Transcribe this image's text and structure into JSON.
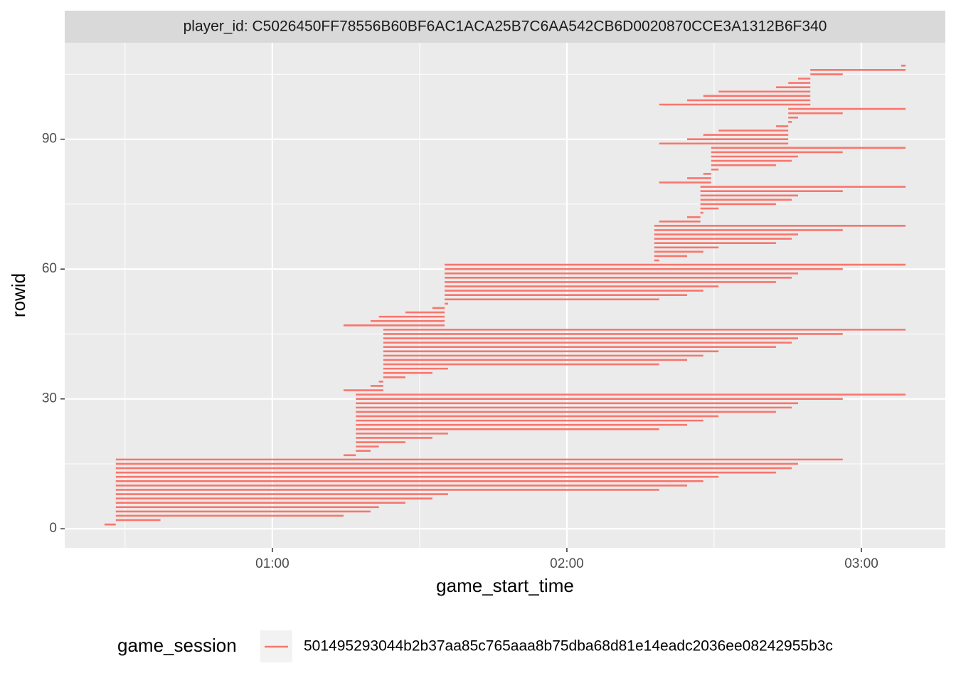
{
  "chart_data": {
    "type": "segment",
    "strip": "player_id: C5026450FF78556B60BF6AC1ACA25B7C6AA542CB6D0020870CCE3A1312B6F340",
    "x_label": "game_start_time",
    "y_label": "rowid",
    "legend_title": "game_session",
    "xlim": [
      17.7,
      197.1
    ],
    "xticks": [
      {
        "value": 60,
        "label": "01:00"
      },
      {
        "value": 120,
        "label": "02:00"
      },
      {
        "value": 180,
        "label": "03:00"
      }
    ],
    "x_minor_breaks": [
      30,
      90,
      150
    ],
    "ylim": [
      -4.4,
      112.3
    ],
    "yticks": [
      0,
      30,
      60,
      90
    ],
    "y_minor_breaks": [
      15,
      45,
      75,
      105
    ],
    "grid": true,
    "series": [
      {
        "name": "501495293044b2b37aa85c765aaa8b75dba68d81e14eadc2036ee08242955b3c",
        "color": "#f8766d",
        "rowid": [
          1,
          2,
          3,
          4,
          5,
          6,
          7,
          8,
          9,
          10,
          11,
          12,
          13,
          14,
          15,
          16,
          17,
          18,
          19,
          20,
          21,
          22,
          23,
          24,
          25,
          26,
          27,
          28,
          29,
          30,
          31,
          32,
          33,
          34,
          35,
          36,
          37,
          38,
          39,
          40,
          41,
          42,
          43,
          44,
          45,
          46,
          47,
          48,
          49,
          50,
          51,
          52,
          53,
          54,
          55,
          56,
          57,
          58,
          59,
          60,
          61,
          62,
          63,
          64,
          65,
          66,
          67,
          68,
          69,
          70,
          71,
          72,
          73,
          74,
          75,
          76,
          77,
          78,
          79,
          80,
          81,
          82,
          83,
          84,
          85,
          86,
          87,
          88,
          89,
          90,
          91,
          92,
          93,
          94,
          95,
          96,
          97,
          98,
          99,
          100,
          101,
          102,
          103,
          104,
          105,
          106,
          107
        ],
        "start": [
          25.8,
          28.1,
          28.1,
          28.1,
          28.1,
          28.1,
          28.1,
          28.1,
          28.1,
          28.1,
          28.1,
          28.1,
          28.1,
          28.1,
          28.1,
          28.1,
          74.5,
          77.0,
          77.0,
          77.0,
          77.0,
          77.0,
          77.0,
          77.0,
          77.0,
          77.0,
          77.0,
          77.0,
          77.0,
          77.0,
          77.0,
          74.5,
          80.0,
          81.7,
          82.6,
          82.6,
          82.6,
          82.6,
          82.6,
          82.6,
          82.6,
          82.6,
          82.6,
          82.6,
          82.6,
          82.6,
          74.5,
          80.0,
          81.7,
          87.1,
          92.6,
          95.1,
          95.1,
          95.1,
          95.1,
          95.1,
          95.1,
          95.1,
          95.1,
          95.1,
          95.1,
          137.8,
          137.8,
          137.8,
          137.8,
          137.8,
          137.8,
          137.8,
          137.8,
          137.8,
          138.8,
          144.5,
          147.2,
          147.2,
          147.2,
          147.2,
          147.2,
          147.2,
          147.2,
          138.8,
          144.5,
          147.8,
          149.4,
          149.4,
          149.4,
          149.4,
          149.4,
          149.4,
          138.8,
          144.5,
          147.8,
          150.9,
          162.6,
          165.1,
          165.1,
          165.1,
          165.1,
          138.8,
          144.5,
          147.8,
          150.9,
          162.6,
          165.1,
          167.1,
          169.6,
          169.6,
          188.1
        ],
        "end": [
          28.1,
          37.2,
          74.5,
          80.0,
          81.7,
          87.1,
          92.6,
          95.8,
          138.8,
          144.5,
          147.8,
          150.9,
          162.6,
          165.8,
          167.1,
          176.2,
          77.0,
          80.0,
          81.7,
          87.1,
          92.6,
          95.8,
          138.8,
          144.5,
          147.8,
          150.9,
          162.6,
          165.8,
          167.1,
          176.2,
          189.0,
          82.6,
          82.6,
          82.6,
          87.1,
          92.6,
          95.8,
          138.8,
          144.5,
          147.8,
          150.9,
          162.6,
          165.8,
          167.1,
          176.2,
          189.0,
          95.1,
          95.1,
          95.1,
          95.1,
          95.1,
          95.8,
          138.8,
          144.5,
          147.8,
          150.9,
          162.6,
          165.8,
          167.1,
          176.2,
          189.0,
          138.8,
          144.5,
          147.8,
          150.9,
          162.6,
          165.8,
          167.1,
          176.2,
          189.0,
          147.2,
          147.2,
          147.8,
          150.9,
          162.6,
          165.8,
          167.1,
          176.2,
          189.0,
          149.4,
          149.4,
          149.4,
          150.9,
          162.6,
          165.8,
          167.1,
          176.2,
          189.0,
          165.1,
          165.1,
          165.1,
          165.1,
          165.1,
          165.8,
          167.1,
          176.2,
          189.0,
          169.6,
          169.6,
          169.6,
          169.6,
          169.6,
          169.6,
          169.6,
          176.2,
          189.0,
          189.0
        ]
      }
    ]
  }
}
